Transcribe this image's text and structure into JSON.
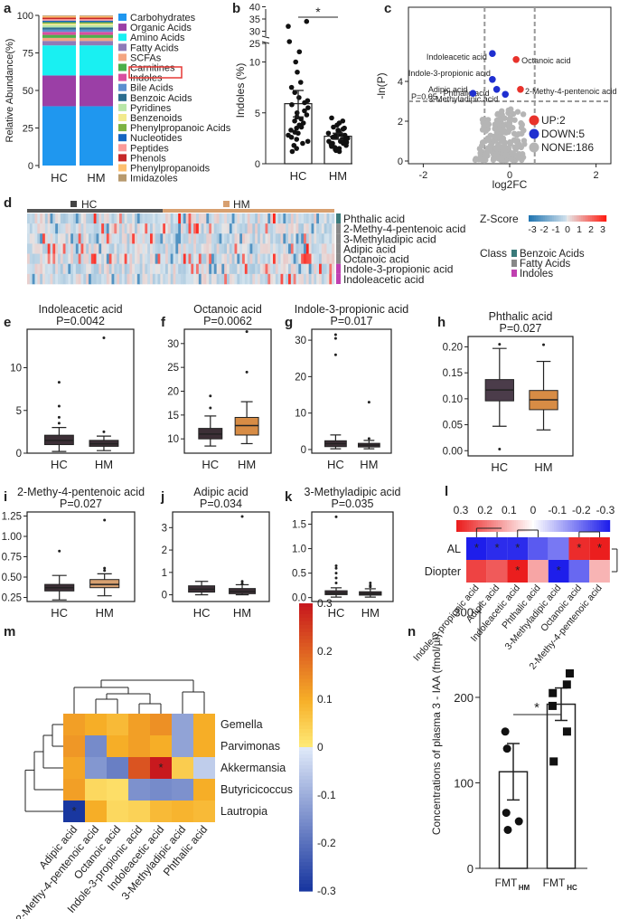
{
  "chart_data": [
    {
      "panel": "a",
      "type": "bar",
      "categories": [
        "HC",
        "HM"
      ],
      "ylabel": "Relative Abundance(%)",
      "yticks": [
        0,
        25,
        50,
        75,
        100
      ],
      "series": [
        {
          "name": "Carbohydrates",
          "color": "#1f97ef",
          "values": [
            39.5,
            39.5
          ]
        },
        {
          "name": "Organic Acids",
          "color": "#9b3fa6",
          "values": [
            20.5,
            20.5
          ]
        },
        {
          "name": "Amino Acids",
          "color": "#19f0f2",
          "values": [
            20,
            20
          ]
        },
        {
          "name": "Fatty Acids",
          "color": "#8f7bb8",
          "values": [
            3,
            3
          ]
        },
        {
          "name": "SCFAs",
          "color": "#f4a582",
          "values": [
            2,
            2
          ]
        },
        {
          "name": "Carnitines",
          "color": "#4daf4a",
          "values": [
            2,
            2
          ]
        },
        {
          "name": "Indoles",
          "color": "#d94fa0",
          "values": [
            2,
            2
          ]
        },
        {
          "name": "Bile Acids",
          "color": "#5b8fd0",
          "values": [
            1.5,
            1.5
          ]
        },
        {
          "name": "Benzoic Acids",
          "color": "#2c6e8f",
          "values": [
            1.5,
            1.5
          ]
        },
        {
          "name": "Pyridines",
          "color": "#b8e6a8",
          "values": [
            1.5,
            1.5
          ]
        },
        {
          "name": "Benzenoids",
          "color": "#f2ea8d",
          "values": [
            1,
            1
          ]
        },
        {
          "name": "Phenylpropanoic Acids",
          "color": "#7cb342",
          "values": [
            1,
            1
          ]
        },
        {
          "name": "Nucleotides",
          "color": "#1565c0",
          "values": [
            1,
            1
          ]
        },
        {
          "name": "Peptides",
          "color": "#fb9a99",
          "values": [
            1,
            1
          ]
        },
        {
          "name": "Phenols",
          "color": "#c62828",
          "values": [
            1,
            1
          ]
        },
        {
          "name": "Phenylpropanoids",
          "color": "#fdbf6f",
          "values": [
            1,
            1
          ]
        },
        {
          "name": "Imidazoles",
          "color": "#b7996d",
          "values": [
            0.5,
            0.5
          ]
        }
      ]
    },
    {
      "panel": "b",
      "type": "bar",
      "categories": [
        "HC",
        "HM"
      ],
      "ylabel": "Indoles (%)",
      "values": [
        5.9,
        2.7
      ],
      "errors": [
        1.3,
        0.3
      ],
      "annotation": "*",
      "yticks_lower": [
        0,
        5,
        10
      ],
      "yticks_upper": [
        25,
        30,
        35,
        40
      ],
      "points_hc": [
        32,
        34,
        12,
        11,
        10,
        9,
        8,
        7.5,
        7,
        6.5,
        6.2,
        6,
        5.8,
        5.5,
        5.2,
        5,
        4.8,
        4.6,
        4.4,
        4.2,
        4,
        3.8,
        3.6,
        3.5,
        3.3,
        3.1,
        3,
        2.8,
        2.6,
        2.4,
        2.2,
        2,
        1.8,
        1.5,
        1.2
      ],
      "points_hm": [
        4.5,
        4.2,
        4,
        3.8,
        3.6,
        3.5,
        3.4,
        3.3,
        3.2,
        3.1,
        3,
        3,
        2.9,
        2.8,
        2.8,
        2.7,
        2.6,
        2.6,
        2.5,
        2.4,
        2.4,
        2.3,
        2.2,
        2.2,
        2.1,
        2,
        2,
        1.9,
        1.8,
        1.7,
        1.6,
        1.5,
        1.4,
        1.3,
        1.2
      ]
    },
    {
      "panel": "c",
      "type": "scatter",
      "xlabel": "log2FC",
      "ylabel": "-ln(P)",
      "xlim": [
        -2.3,
        2.3
      ],
      "ylim": [
        0,
        5.8
      ],
      "xticks": [
        -2,
        0,
        2
      ],
      "yticks": [
        0,
        2,
        4
      ],
      "threshold_label": "P=0.05",
      "legend": [
        {
          "label": "UP:2",
          "color": "#e8322b"
        },
        {
          "label": "DOWN:5",
          "color": "#1f2fd0"
        },
        {
          "label": "NONE:186",
          "color": "#b5b5b5"
        }
      ],
      "up": [
        {
          "name": "Octanoic acid",
          "x": 0.15,
          "y": 5.1
        },
        {
          "name": "2-Methy-4-pentenoic acid",
          "x": 0.25,
          "y": 3.6
        }
      ],
      "down": [
        {
          "name": "Indoleacetic acid",
          "x": -0.4,
          "y": 5.4
        },
        {
          "name": "Indole-3-propionic acid",
          "x": -0.4,
          "y": 4.1
        },
        {
          "name": "Phthalic acid",
          "x": -0.3,
          "y": 3.6
        },
        {
          "name": "Adipic acid",
          "x": -0.85,
          "y": 3.4
        },
        {
          "name": "3-Methyladipic acid",
          "x": -0.1,
          "y": 3.35
        }
      ]
    },
    {
      "panel": "d",
      "type": "heatmap",
      "groups": [
        "HC",
        "HM"
      ],
      "rows": [
        "Phthalic acid",
        "2-Methy-4-pentenoic acid",
        "3-Methyladipic acid",
        "Adipic acid",
        "Octanoic acid",
        "Indole-3-propionic acid",
        "Indoleacetic acid"
      ],
      "row_class": [
        "Benzoic Acids",
        "Fatty Acids",
        "Fatty Acids",
        "Fatty Acids",
        "Fatty Acids",
        "Indoles",
        "Indoles"
      ],
      "zscore_label": "Z-Score",
      "zscore_ticks": [
        "-3",
        "-2",
        "-1",
        "0",
        "1",
        "2",
        "3"
      ],
      "class_label": "Class",
      "classes": [
        {
          "name": "Benzoic Acids",
          "color": "#3a7a7a"
        },
        {
          "name": "Fatty Acids",
          "color": "#888888"
        },
        {
          "name": "Indoles",
          "color": "#c040b0"
        }
      ]
    },
    {
      "panel": "e",
      "type": "box",
      "title": "Indoleacetic acid",
      "pvalue": "P=0.0042",
      "categories": [
        "HC",
        "HM"
      ],
      "yticks": [
        0,
        5,
        10
      ],
      "ylim": [
        0,
        14.5
      ],
      "boxes": [
        {
          "min": 0.2,
          "q1": 1.0,
          "median": 1.5,
          "q3": 2.1,
          "max": 3.0,
          "outliers": [
            3.5,
            4.2,
            5.5,
            8.3
          ],
          "color": "#3c2f36"
        },
        {
          "min": 0.3,
          "q1": 0.8,
          "median": 1.1,
          "q3": 1.5,
          "max": 2.0,
          "outliers": [
            2.5,
            13.5
          ],
          "color": "#3c2f36"
        }
      ]
    },
    {
      "panel": "f",
      "type": "box",
      "title": "Octanoic acid",
      "pvalue": "P=0.0062",
      "categories": [
        "HC",
        "HM"
      ],
      "yticks": [
        10,
        15,
        20,
        25,
        30
      ],
      "ylim": [
        7,
        33
      ],
      "boxes": [
        {
          "min": 8.5,
          "q1": 10.0,
          "median": 11.0,
          "q3": 12.2,
          "max": 14.8,
          "outliers": [
            16.5,
            19
          ],
          "color": "#3c2f36"
        },
        {
          "min": 9.0,
          "q1": 10.8,
          "median": 12.8,
          "q3": 14.5,
          "max": 17.8,
          "outliers": [
            24,
            32.5
          ],
          "color": "#d78c45"
        }
      ]
    },
    {
      "panel": "g",
      "type": "box",
      "title": "Indole-3-propionic acid",
      "pvalue": "P=0.017",
      "categories": [
        "HC",
        "HM"
      ],
      "yticks": [
        0,
        10,
        20,
        30
      ],
      "ylim": [
        -1,
        33
      ],
      "boxes": [
        {
          "min": 0.2,
          "q1": 0.8,
          "median": 1.6,
          "q3": 2.4,
          "max": 4.0,
          "outliers": [
            26,
            30.5,
            31.5
          ],
          "color": "#3c2f36"
        },
        {
          "min": 0.2,
          "q1": 0.7,
          "median": 1.2,
          "q3": 1.7,
          "max": 2.5,
          "outliers": [
            3,
            13
          ],
          "color": "#3c2f36"
        }
      ]
    },
    {
      "panel": "h",
      "type": "box",
      "title": "Phthalic acid",
      "pvalue": "P=0.027",
      "categories": [
        "HC",
        "HM"
      ],
      "yticks": [
        "0.00",
        "0.05",
        "0.10",
        "0.15",
        "0.20"
      ],
      "ylim": [
        -0.01,
        0.22
      ],
      "boxes": [
        {
          "min": 0.047,
          "q1": 0.096,
          "median": 0.117,
          "q3": 0.137,
          "max": 0.197,
          "outliers": [
            0.003,
            0.205
          ],
          "color": "#4b3c4a"
        },
        {
          "min": 0.04,
          "q1": 0.079,
          "median": 0.098,
          "q3": 0.116,
          "max": 0.172,
          "outliers": [
            0.204
          ],
          "color": "#d78c45"
        }
      ]
    },
    {
      "panel": "i",
      "type": "box",
      "title": "2-Methy-4-pentenoic acid",
      "pvalue": "P=0.027",
      "categories": [
        "HC",
        "HM"
      ],
      "yticks": [
        "0.25",
        "0.50",
        "0.75",
        "1.00",
        "1.25"
      ],
      "ylim": [
        0.2,
        1.3
      ],
      "boxes": [
        {
          "min": 0.22,
          "q1": 0.33,
          "median": 0.37,
          "q3": 0.41,
          "max": 0.52,
          "outliers": [
            0.82
          ],
          "color": "#3c2f36"
        },
        {
          "min": 0.27,
          "q1": 0.37,
          "median": 0.41,
          "q3": 0.47,
          "max": 0.54,
          "outliers": [
            0.58,
            0.61,
            1.2
          ],
          "color": "#d7a070"
        }
      ]
    },
    {
      "panel": "j",
      "type": "box",
      "title": "Adipic acid",
      "pvalue": "P=0.034",
      "categories": [
        "HC",
        "HM"
      ],
      "yticks": [
        0,
        1,
        2,
        3
      ],
      "ylim": [
        -0.3,
        3.7
      ],
      "boxes": [
        {
          "min": 0.0,
          "q1": 0.12,
          "median": 0.25,
          "q3": 0.4,
          "max": 0.6,
          "outliers": [],
          "color": "#3c2f36"
        },
        {
          "min": 0.0,
          "q1": 0.05,
          "median": 0.15,
          "q3": 0.28,
          "max": 0.45,
          "outliers": [
            0.5,
            0.6,
            3.5
          ],
          "color": "#3c2f36"
        }
      ]
    },
    {
      "panel": "k",
      "type": "box",
      "title": "3-Methyladipic acid",
      "pvalue": "P=0.035",
      "categories": [
        "HC",
        "HM"
      ],
      "yticks": [
        "0.0",
        "0.5",
        "1.0",
        "1.5"
      ],
      "ylim": [
        -0.08,
        1.75
      ],
      "boxes": [
        {
          "min": 0.01,
          "q1": 0.06,
          "median": 0.09,
          "q3": 0.14,
          "max": 0.2,
          "outliers": [
            0.3,
            0.4,
            0.5,
            0.6,
            0.65,
            1.65
          ],
          "color": "#3c2f36"
        },
        {
          "min": 0.01,
          "q1": 0.05,
          "median": 0.08,
          "q3": 0.12,
          "max": 0.18,
          "outliers": [
            0.22,
            0.25,
            0.3
          ],
          "color": "#3c2f36"
        }
      ]
    },
    {
      "panel": "l",
      "type": "heatmap",
      "rows": [
        "AL",
        "Diopter"
      ],
      "cols": [
        "Indole-3-propionic acid",
        "Adipic acid",
        "Indoleacetic acid",
        "Phthalic acid",
        "3-Methyladipic acid",
        "Octanoic acid",
        "2-Methy-4-pentenoic acid"
      ],
      "colorbar_ticks": [
        "0.3",
        "0.2",
        "0.1",
        "0",
        "-0.1",
        "-0.2",
        "-0.3"
      ],
      "values": [
        [
          -0.3,
          -0.28,
          -0.28,
          -0.22,
          -0.18,
          0.28,
          0.3
        ],
        [
          0.25,
          0.22,
          0.3,
          0.12,
          -0.3,
          -0.2,
          0.1
        ]
      ],
      "stars": [
        [
          true,
          true,
          true,
          false,
          false,
          true,
          true
        ],
        [
          false,
          false,
          true,
          false,
          true,
          false,
          false
        ]
      ]
    },
    {
      "panel": "m",
      "type": "heatmap",
      "rows": [
        "Gemella",
        "Parvimonas",
        "Akkermansia",
        "Butyricicoccus",
        "Lautropia"
      ],
      "cols": [
        "Adipic acid",
        "2-Methy-4-pentenoic acid",
        "Octanoic acid",
        "Indole-3-propionic acid",
        "Indoleacetic acid",
        "3-Methyladipic acid",
        "Phthalic acid"
      ],
      "colorbar_ticks": [
        "0.3",
        "0.2",
        "0.1",
        "0",
        "-0.1",
        "-0.2",
        "-0.3"
      ],
      "values": [
        [
          0.12,
          0.1,
          0.08,
          0.12,
          0.14,
          -0.12,
          0.1
        ],
        [
          0.13,
          -0.16,
          0.1,
          0.12,
          0.1,
          -0.12,
          0.1
        ],
        [
          0.11,
          -0.14,
          -0.18,
          0.22,
          0.32,
          0.05,
          -0.05
        ],
        [
          0.12,
          0.03,
          0.02,
          -0.15,
          -0.16,
          -0.15,
          0.1
        ],
        [
          -0.3,
          0.1,
          0.03,
          0.04,
          0.08,
          0.09,
          0.08
        ]
      ],
      "stars": [
        [
          false,
          false,
          false,
          false,
          false,
          false,
          false
        ],
        [
          false,
          false,
          false,
          false,
          false,
          false,
          false
        ],
        [
          false,
          false,
          false,
          false,
          true,
          false,
          false
        ],
        [
          false,
          false,
          false,
          false,
          false,
          false,
          false
        ],
        [
          true,
          false,
          false,
          false,
          false,
          false,
          false
        ]
      ]
    },
    {
      "panel": "n",
      "type": "bar",
      "categories": [
        "FMT",
        "FMT"
      ],
      "category_subscripts": [
        "HM",
        "HC"
      ],
      "ylabel": "Concentrations of plasma 3 - IAA (fmol/µl)",
      "values": [
        113,
        192
      ],
      "errors": [
        33,
        19
      ],
      "yticks": [
        0,
        100,
        200,
        300
      ],
      "ylim": [
        0,
        310
      ],
      "annotation": "*",
      "points_hm": [
        160,
        140,
        65,
        55,
        45
      ],
      "points_hc": [
        228,
        215,
        205,
        190,
        160,
        125
      ]
    }
  ]
}
